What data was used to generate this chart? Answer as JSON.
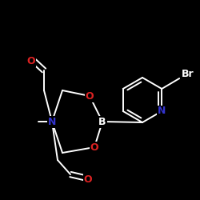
{
  "background_color": "#000000",
  "atom_colors": {
    "O": "#dd2222",
    "N": "#3333cc",
    "B": "#ffffff",
    "Br": "#ffffff",
    "C": "#ffffff"
  },
  "figsize": [
    2.5,
    2.5
  ],
  "dpi": 100,
  "lw": 1.4,
  "fontsize": 9
}
